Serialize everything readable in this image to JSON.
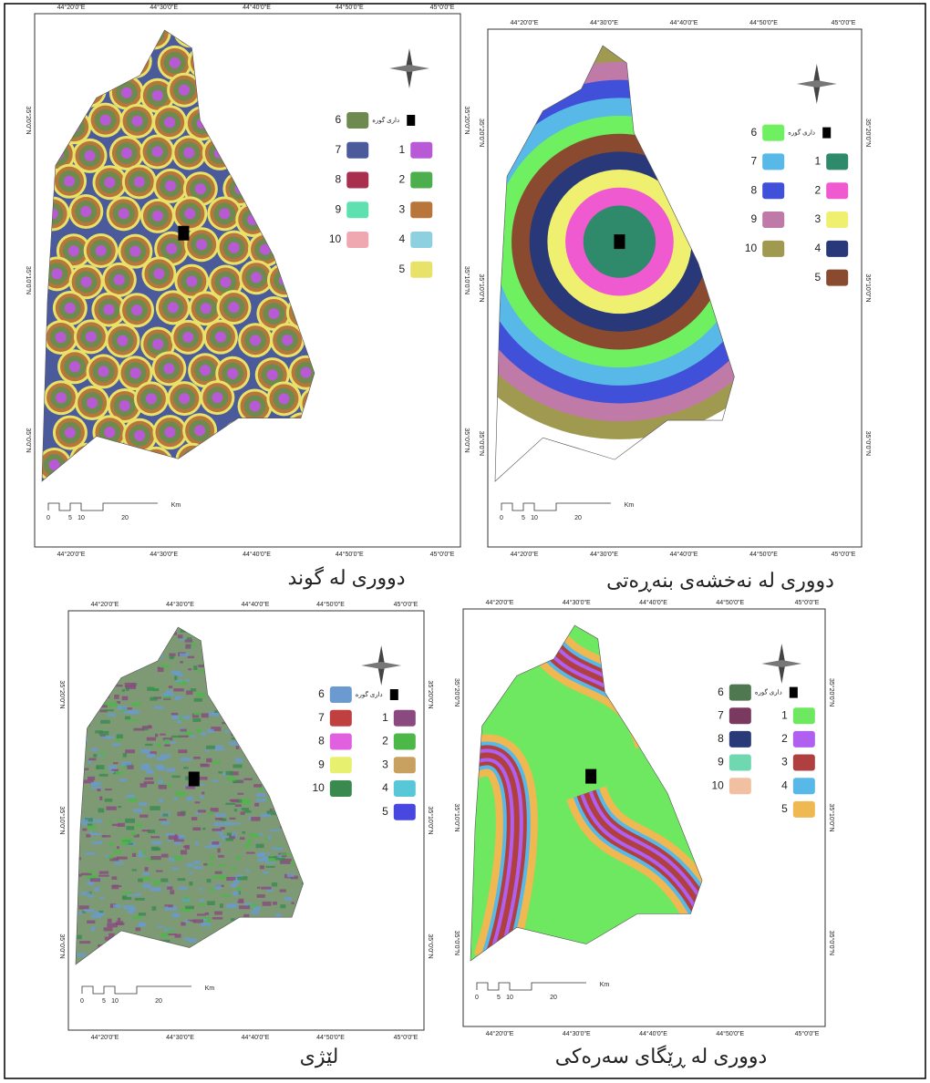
{
  "lon_labels": [
    "44°20'0\"E",
    "44°30'0\"E",
    "44°40'0\"E",
    "44°50'0\"E",
    "45°0'0\"E"
  ],
  "lat_labels": [
    "35°20'0\"N",
    "35°10'0\"N",
    "35°0'0\"N"
  ],
  "scale_labels": [
    "0",
    "5",
    "10",
    "20",
    "Km"
  ],
  "panels": [
    {
      "caption": "دووری لە گوند",
      "marker_label": "دارى گوره",
      "legend": [
        {
          "label": "1",
          "color": "#b85ad6"
        },
        {
          "label": "2",
          "color": "#4cae4c"
        },
        {
          "label": "3",
          "color": "#b8763a"
        },
        {
          "label": "4",
          "color": "#8fd0e0"
        },
        {
          "label": "5",
          "color": "#e8e26a"
        },
        {
          "label": "6",
          "color": "#6e8a4e"
        },
        {
          "label": "7",
          "color": "#4a5a9a"
        },
        {
          "label": "8",
          "color": "#a8304e"
        },
        {
          "label": "9",
          "color": "#5ee0b0"
        },
        {
          "label": "10",
          "color": "#f0a8b0"
        }
      ]
    },
    {
      "caption": "دووری لە نەخشەی بنەڕەتی",
      "marker_label": "دارى گوره",
      "legend": [
        {
          "label": "1",
          "color": "#2e8a6a"
        },
        {
          "label": "2",
          "color": "#f05ad0"
        },
        {
          "label": "3",
          "color": "#f0f070"
        },
        {
          "label": "4",
          "color": "#283878"
        },
        {
          "label": "5",
          "color": "#8a4a30"
        },
        {
          "label": "6",
          "color": "#6ef060"
        },
        {
          "label": "7",
          "color": "#58b8e8"
        },
        {
          "label": "8",
          "color": "#4050d8"
        },
        {
          "label": "9",
          "color": "#c07aa8"
        },
        {
          "label": "10",
          "color": "#a09a50"
        }
      ]
    },
    {
      "caption": "لێژی",
      "marker_label": "دارى گوره",
      "legend": [
        {
          "label": "1",
          "color": "#8a4a80"
        },
        {
          "label": "2",
          "color": "#4cb848"
        },
        {
          "label": "3",
          "color": "#c8a060"
        },
        {
          "label": "4",
          "color": "#58c8d8"
        },
        {
          "label": "5",
          "color": "#4848e0"
        },
        {
          "label": "6",
          "color": "#6a9ad0"
        },
        {
          "label": "7",
          "color": "#c04040"
        },
        {
          "label": "8",
          "color": "#e060e0"
        },
        {
          "label": "9",
          "color": "#e8f070"
        },
        {
          "label": "10",
          "color": "#3a8a50"
        }
      ]
    },
    {
      "caption": "دووری لە ڕێگای سەرەکی",
      "marker_label": "دارى گوره",
      "legend": [
        {
          "label": "1",
          "color": "#6ee860"
        },
        {
          "label": "2",
          "color": "#b060f0"
        },
        {
          "label": "3",
          "color": "#b04040"
        },
        {
          "label": "4",
          "color": "#58b8e8"
        },
        {
          "label": "5",
          "color": "#f0b850"
        },
        {
          "label": "6",
          "color": "#507850"
        },
        {
          "label": "7",
          "color": "#7a3a60"
        },
        {
          "label": "8",
          "color": "#283a78"
        },
        {
          "label": "9",
          "color": "#70d8b0"
        },
        {
          "label": "10",
          "color": "#f0c0a0"
        }
      ]
    }
  ]
}
